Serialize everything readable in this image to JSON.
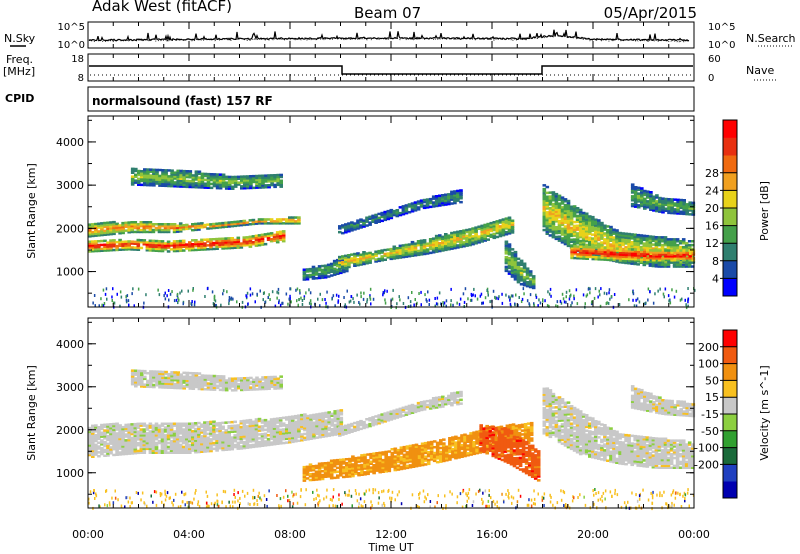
{
  "header": {
    "station": "Adak West (fitACF)",
    "beam": "Beam 07",
    "date": "05/Apr/2015"
  },
  "status_panels": {
    "left_labels": {
      "nsky": "N.Sky",
      "freq": "Freq.",
      "freq_unit": "[MHz]",
      "cpid": "CPID"
    },
    "right_labels": {
      "nsearch": "N.Search",
      "nave": "Nave"
    },
    "noise_ticks_left": [
      "10^5",
      "10^0"
    ],
    "noise_ticks_right": [
      "10^5",
      "10^0"
    ],
    "freq_ticks": [
      "18",
      "8"
    ],
    "nave_ticks": [
      "60",
      "0"
    ],
    "cpid_text": "normalsound (fast) 157 RF"
  },
  "chart_data": [
    {
      "type": "heatmap",
      "title": "",
      "xlabel": "Time UT",
      "ylabel": "Slant Range [km]",
      "xlim": [
        0,
        24
      ],
      "ylim": [
        180,
        4600
      ],
      "x_ticks": [
        "00:00",
        "04:00",
        "08:00",
        "12:00",
        "16:00",
        "20:00",
        "00:00"
      ],
      "y_ticks": [
        "1000",
        "2000",
        "3000",
        "4000"
      ],
      "colorbar": {
        "label": "Power [dB]",
        "ticks": [
          "4",
          "8",
          "12",
          "16",
          "20",
          "24",
          "28"
        ],
        "colors": [
          "#0000ff",
          "#1a4aa8",
          "#2f7f6f",
          "#44a04a",
          "#8fc43c",
          "#e8d21a",
          "#f0a020",
          "#f06a10",
          "#e83010",
          "#ff0000"
        ]
      },
      "bands": [
        {
          "start": 0.0,
          "end": 8.4,
          "r0": [
            1800,
            1900,
            1900,
            2000,
            2100,
            2100
          ],
          "r1": [
            2100,
            2150,
            2100,
            2100,
            2200,
            2250
          ],
          "level": 0.75
        },
        {
          "start": 0.0,
          "end": 7.8,
          "r0": [
            1450,
            1500,
            1450,
            1500,
            1550,
            1700
          ],
          "r1": [
            1700,
            1720,
            1700,
            1750,
            1800,
            1950
          ],
          "level": 0.95
        },
        {
          "start": 1.7,
          "end": 7.6,
          "r0": [
            3000,
            2950,
            2900,
            2950
          ],
          "r1": [
            3400,
            3350,
            3200,
            3250
          ],
          "level": 0.45
        },
        {
          "start": 9.9,
          "end": 14.8,
          "r0": [
            1850,
            2150,
            2450,
            2600
          ],
          "r1": [
            2050,
            2350,
            2650,
            2900
          ],
          "level": 0.3
        },
        {
          "start": 8.5,
          "end": 10.2,
          "r0": [
            800,
            850,
            1000
          ],
          "r1": [
            1050,
            1150,
            1350
          ],
          "level": 0.35
        },
        {
          "start": 9.9,
          "end": 16.8,
          "r0": [
            1050,
            1250,
            1400,
            1600,
            1900
          ],
          "r1": [
            1350,
            1500,
            1750,
            2000,
            2300
          ],
          "level": 0.6
        },
        {
          "start": 16.5,
          "end": 17.6,
          "r0": [
            1000,
            700,
            600
          ],
          "r1": [
            1700,
            1300,
            900
          ],
          "level": 0.45
        },
        {
          "start": 18.0,
          "end": 24.0,
          "r0": [
            1900,
            1400,
            1200,
            1100,
            1100
          ],
          "r1": [
            3000,
            2400,
            1900,
            1800,
            1700
          ],
          "level": 0.6
        },
        {
          "start": 19.1,
          "end": 24.0,
          "r0": [
            1300,
            1250,
            1200,
            1200
          ],
          "r1": [
            1600,
            1550,
            1500,
            1500
          ],
          "level": 0.97
        },
        {
          "start": 21.5,
          "end": 24.0,
          "r0": [
            2500,
            2350,
            2300
          ],
          "r1": [
            3000,
            2700,
            2600
          ],
          "level": 0.4
        }
      ]
    },
    {
      "type": "heatmap",
      "title": "",
      "xlabel": "Time UT",
      "ylabel": "Slant Range [km]",
      "xlim": [
        0,
        24
      ],
      "ylim": [
        180,
        4600
      ],
      "x_ticks": [
        "00:00",
        "04:00",
        "08:00",
        "12:00",
        "16:00",
        "20:00",
        "00:00"
      ],
      "y_ticks": [
        "1000",
        "2000",
        "3000",
        "4000"
      ],
      "colorbar": {
        "label": "Velocity [m s^-1]",
        "ticks": [
          "200",
          "100",
          "50",
          "15",
          "-15",
          "-50",
          "-100",
          "-200"
        ],
        "colors": [
          "#0000b0",
          "#2040c0",
          "#1a6a3a",
          "#30a030",
          "#8ccf40",
          "#c8c8c8",
          "#f8c020",
          "#f09010",
          "#f05a10",
          "#ff0000"
        ]
      },
      "bands": [
        {
          "start": 0.0,
          "end": 10.0,
          "r0": [
            1350,
            1450,
            1450,
            1550,
            1700,
            1900
          ],
          "r1": [
            2100,
            2150,
            2150,
            2200,
            2300,
            2450
          ],
          "level": 0.55
        },
        {
          "start": 1.7,
          "end": 7.6,
          "r0": [
            3000,
            2950,
            2900,
            2950
          ],
          "r1": [
            3400,
            3350,
            3200,
            3250
          ],
          "level": 0.55
        },
        {
          "start": 9.9,
          "end": 14.8,
          "r0": [
            1850,
            2150,
            2450,
            2600
          ],
          "r1": [
            2050,
            2350,
            2650,
            2900
          ],
          "level": 0.55
        },
        {
          "start": 8.5,
          "end": 17.6,
          "r0": [
            800,
            900,
            1050,
            1250,
            1500,
            1700
          ],
          "r1": [
            1150,
            1350,
            1550,
            1750,
            2050,
            2150
          ],
          "level": 0.73
        },
        {
          "start": 15.5,
          "end": 17.8,
          "r0": [
            1500,
            1200,
            800
          ],
          "r1": [
            2100,
            2000,
            1500
          ],
          "level": 0.85
        },
        {
          "start": 18.0,
          "end": 24.0,
          "r0": [
            1900,
            1400,
            1200,
            1100,
            1100
          ],
          "r1": [
            3000,
            2400,
            1900,
            1800,
            1700
          ],
          "level": 0.55
        },
        {
          "start": 21.5,
          "end": 24.0,
          "r0": [
            2500,
            2350,
            2300
          ],
          "r1": [
            3000,
            2700,
            2600
          ],
          "level": 0.55
        }
      ]
    }
  ]
}
